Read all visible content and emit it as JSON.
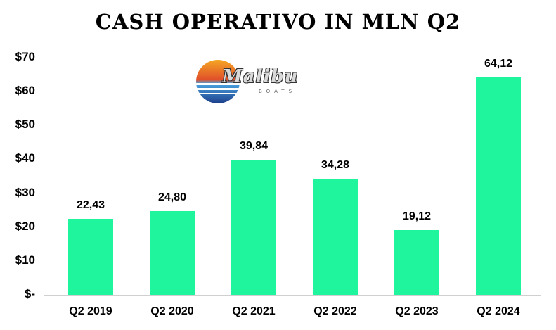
{
  "chart_data": {
    "type": "bar",
    "title": "CASH OPERATIVO IN MLN Q2",
    "categories": [
      "Q2 2019",
      "Q2 2020",
      "Q2 2021",
      "Q2 2022",
      "Q2 2023",
      "Q2 2024"
    ],
    "values": [
      22.43,
      24.8,
      39.84,
      34.28,
      19.12,
      64.12
    ],
    "data_labels": [
      "22,43",
      "24,80",
      "39,84",
      "34,28",
      "19,12",
      "64,12"
    ],
    "y_tick_labels": [
      "$-",
      "$10",
      "$20",
      "$30",
      "$40",
      "$50",
      "$60",
      "$70"
    ],
    "y_ticks": [
      0,
      10,
      20,
      30,
      40,
      50,
      60,
      70
    ],
    "ylim": [
      0,
      70
    ],
    "grid": false,
    "bar_color": "#1ef59c"
  },
  "logo": {
    "name": "malibu-boats-logo",
    "brand": "Malibu",
    "sub": "BOATS"
  }
}
